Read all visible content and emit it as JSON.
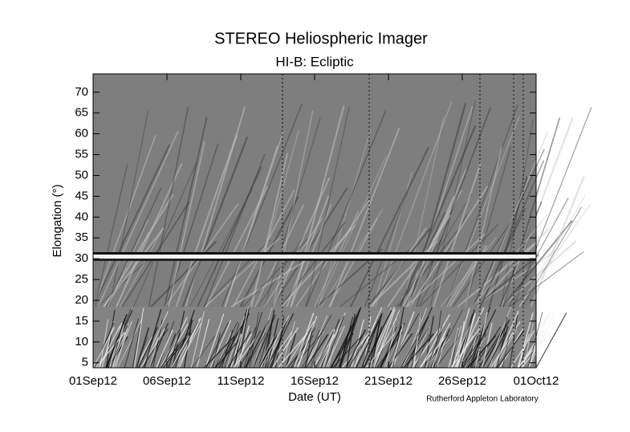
{
  "chart_data": {
    "type": "image",
    "title": "STEREO Heliospheric Imager",
    "subtitle": "HI-B: Ecliptic",
    "x_label": "Date (UT)",
    "y_label": "Elongation (°)",
    "credit": "Rutherford Appleton Laboratory",
    "xlim": [
      "2012-09-01",
      "2012-10-01"
    ],
    "xticks": [
      {
        "value": "2012-09-01",
        "label": "01Sep12"
      },
      {
        "value": "2012-09-06",
        "label": "06Sep12"
      },
      {
        "value": "2012-09-11",
        "label": "11Sep12"
      },
      {
        "value": "2012-09-16",
        "label": "16Sep12"
      },
      {
        "value": "2012-09-21",
        "label": "21Sep12"
      },
      {
        "value": "2012-09-26",
        "label": "26Sep12"
      },
      {
        "value": "2012-10-01",
        "label": "01Oct12"
      }
    ],
    "ylim": [
      3.8,
      74.4
    ],
    "yticks": [
      5,
      10,
      15,
      20,
      25,
      30,
      35,
      40,
      45,
      50,
      55,
      60,
      65,
      70
    ]
  }
}
